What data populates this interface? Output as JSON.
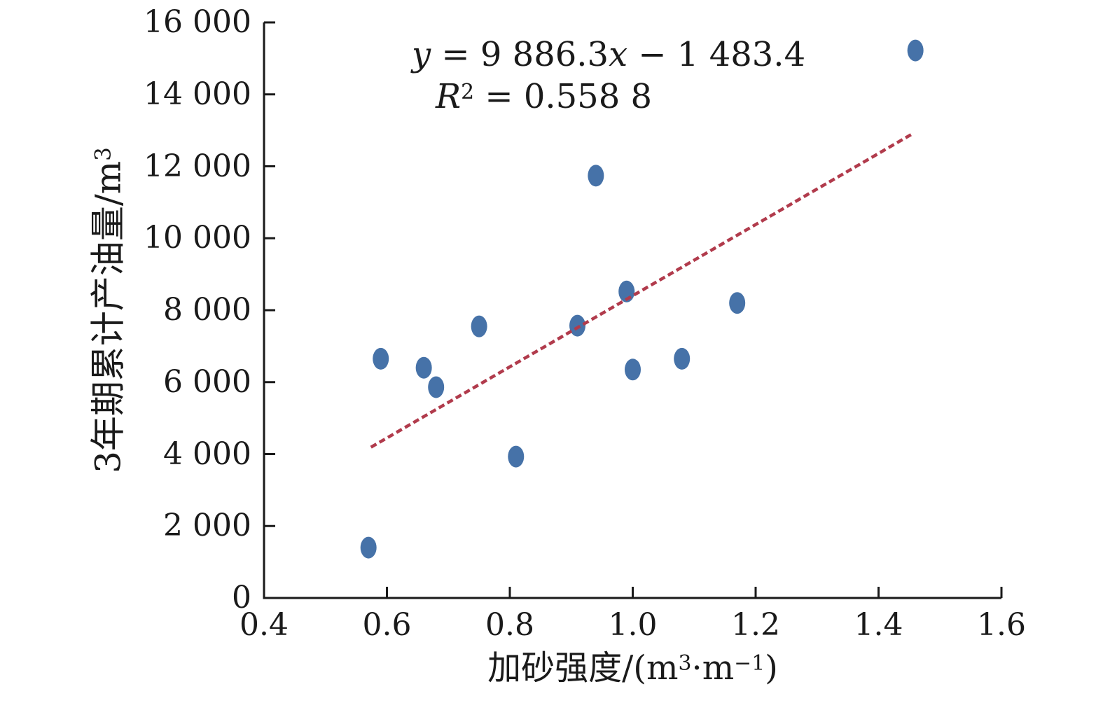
{
  "figure": {
    "background": "#ffffff",
    "axis_color": "#1a1a1a",
    "text_color": "#1a1a1a"
  },
  "annotation": {
    "line1": {
      "var1": "y",
      "mid": " = 9 886.3",
      "var2": "x",
      "tail": " − 1 483.4"
    },
    "line2": {
      "var": "R",
      "sup": "2",
      "tail": " = 0.558 8"
    }
  },
  "x_axis": {
    "label_parts": {
      "p1": "加砂强度/(m",
      "s1": "3",
      "p2": "·m",
      "s2": "−1",
      "p3": ")"
    }
  },
  "y_axis": {
    "label_parts": {
      "p1": "3年期累计产油量/m",
      "s1": "3"
    }
  },
  "chart_data": {
    "type": "scatter",
    "title": "",
    "xlabel": "加砂强度/(m³·m⁻¹)",
    "ylabel": "3年期累计产油量/m³",
    "xlim": [
      0.4,
      1.6
    ],
    "ylim": [
      0,
      16000
    ],
    "x_ticks": [
      0.4,
      0.6,
      0.8,
      1.0,
      1.2,
      1.4,
      1.6
    ],
    "x_tick_labels": [
      "0.4",
      "0.6",
      "0.8",
      "1.0",
      "1.2",
      "1.4",
      "1.6"
    ],
    "y_ticks": [
      0,
      2000,
      4000,
      6000,
      8000,
      10000,
      12000,
      14000,
      16000
    ],
    "y_tick_labels": [
      "0",
      "2 000",
      "4 000",
      "6 000",
      "8 000",
      "10 000",
      "12 000",
      "14 000",
      "16 000"
    ],
    "grid": false,
    "legend": false,
    "points": [
      {
        "x": 0.57,
        "y": 1400
      },
      {
        "x": 0.59,
        "y": 6650
      },
      {
        "x": 0.66,
        "y": 6400
      },
      {
        "x": 0.68,
        "y": 5860
      },
      {
        "x": 0.75,
        "y": 7550
      },
      {
        "x": 0.81,
        "y": 3930
      },
      {
        "x": 0.91,
        "y": 7570
      },
      {
        "x": 0.94,
        "y": 11740
      },
      {
        "x": 0.99,
        "y": 8520
      },
      {
        "x": 1.0,
        "y": 6350
      },
      {
        "x": 1.08,
        "y": 6650
      },
      {
        "x": 1.17,
        "y": 8200
      },
      {
        "x": 1.46,
        "y": 15220
      }
    ],
    "marker": {
      "shape": "ellipse",
      "color": "#4672a8"
    },
    "trendline": {
      "equation": "y = 9 886.3x − 1 483.4",
      "r_squared": "R² = 0.558 8",
      "slope": 9886.3,
      "intercept": -1483.4,
      "x_start": 0.574,
      "x_end": 1.457,
      "color": "#b13b4c",
      "style": "dashed"
    }
  }
}
